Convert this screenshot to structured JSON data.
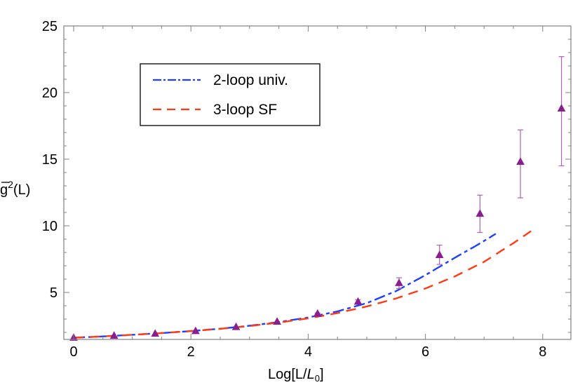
{
  "chart_data": {
    "type": "line",
    "title": "",
    "xlabel": "Log[L/L0]",
    "xlabel_parts": {
      "prefix": "Log[L/",
      "italic": "L",
      "sub": "0",
      "suffix": "]"
    },
    "ylabel": "ḡ²(L)",
    "ylabel_parts": {
      "base": "g",
      "sup": "2",
      "suffix": "(L)"
    },
    "xlim": [
      -0.17,
      8.5
    ],
    "ylim": [
      1.5,
      25
    ],
    "x_ticks": [
      0,
      2,
      4,
      6,
      8
    ],
    "x_tick_labels": [
      "0",
      "2",
      "4",
      "6",
      "8"
    ],
    "y_ticks": [
      5,
      10,
      15,
      20,
      25
    ],
    "y_tick_labels": [
      "5",
      "10",
      "15",
      "20",
      "25"
    ],
    "grid": false,
    "legend_position": "upper-left",
    "legend": [
      {
        "label": "2-loop univ.",
        "style": "dash-dot",
        "color": "#1f3fff"
      },
      {
        "label": "3-loop SF",
        "style": "dashed",
        "color": "#ff3a14"
      }
    ],
    "series": [
      {
        "name": "2-loop univ.",
        "type": "line",
        "color": "#1f3fff",
        "x": [
          0,
          0.5,
          1,
          1.5,
          2,
          2.5,
          3,
          3.5,
          4,
          4.5,
          5,
          5.5,
          6,
          6.5,
          6.9,
          7.2
        ],
        "y": [
          1.6,
          1.7,
          1.82,
          1.95,
          2.1,
          2.28,
          2.5,
          2.78,
          3.12,
          3.58,
          4.2,
          5.1,
          6.3,
          7.6,
          8.6,
          9.4
        ]
      },
      {
        "name": "3-loop SF",
        "type": "line",
        "color": "#ff3a14",
        "x": [
          0,
          0.5,
          1,
          1.5,
          2,
          2.5,
          3,
          3.5,
          4,
          4.5,
          5,
          5.5,
          6,
          6.5,
          7,
          7.5,
          7.8
        ],
        "y": [
          1.6,
          1.7,
          1.82,
          1.95,
          2.1,
          2.27,
          2.48,
          2.74,
          3.05,
          3.45,
          3.95,
          4.55,
          5.3,
          6.2,
          7.3,
          8.7,
          9.6
        ]
      },
      {
        "name": "data",
        "type": "scatter",
        "marker": "triangle",
        "color": "#8b1e8f",
        "x": [
          0,
          0.69,
          1.39,
          2.08,
          2.77,
          3.47,
          4.16,
          4.85,
          5.55,
          6.24,
          6.93,
          7.62,
          8.32
        ],
        "y": [
          1.6,
          1.75,
          1.9,
          2.1,
          2.4,
          2.8,
          3.4,
          4.3,
          5.7,
          7.8,
          10.9,
          14.8,
          18.8
        ],
        "err_low": [
          0,
          0,
          0,
          0,
          0,
          0,
          0.05,
          0.15,
          0.4,
          0.7,
          1.4,
          2.7,
          4.3
        ],
        "err_high": [
          0,
          0,
          0,
          0,
          0,
          0,
          0.05,
          0.15,
          0.4,
          0.75,
          1.4,
          2.4,
          3.9
        ]
      }
    ]
  }
}
